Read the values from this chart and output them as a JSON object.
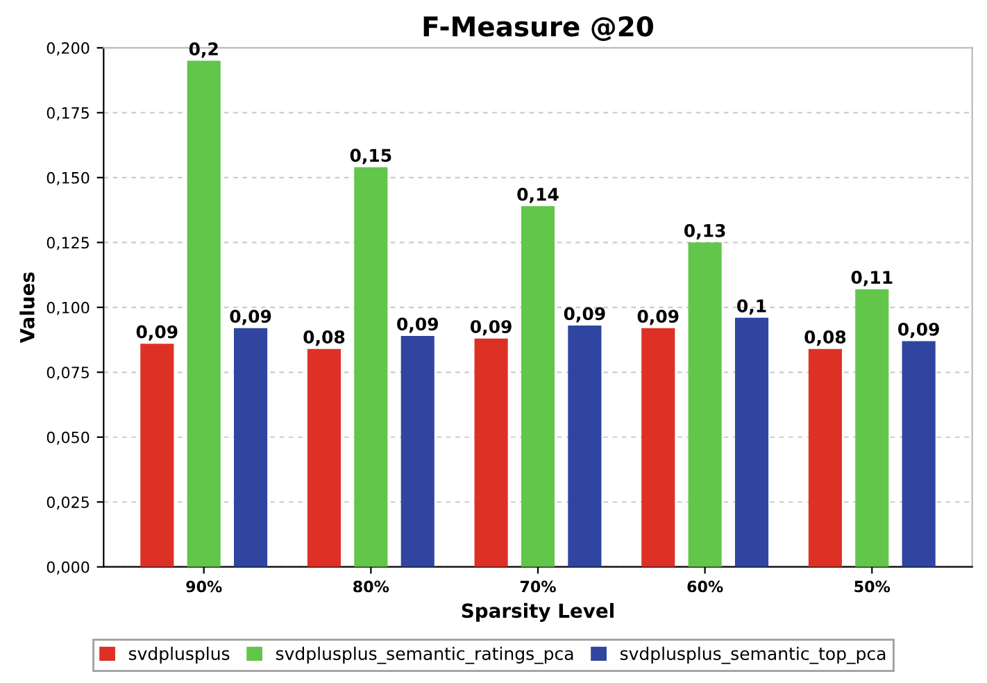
{
  "chart_data": {
    "type": "bar",
    "title": "F-Measure @20",
    "xlabel": "Sparsity Level",
    "ylabel": "Values",
    "categories": [
      "90%",
      "80%",
      "70%",
      "60%",
      "50%"
    ],
    "series": [
      {
        "name": "svdplusplus",
        "color": "#de3125",
        "values": [
          0.086,
          0.084,
          0.088,
          0.092,
          0.084
        ],
        "value_labels": [
          "0,09",
          "0,08",
          "0,09",
          "0,09",
          "0,08"
        ]
      },
      {
        "name": "svdplusplus_semantic_ratings_pca",
        "color": "#62c64b",
        "values": [
          0.195,
          0.154,
          0.139,
          0.125,
          0.107
        ],
        "value_labels": [
          "0,2",
          "0,15",
          "0,14",
          "0,13",
          "0,11"
        ]
      },
      {
        "name": "svdplusplus_semantic_top_pca",
        "color": "#2f45a0",
        "values": [
          0.092,
          0.089,
          0.093,
          0.096,
          0.087
        ],
        "value_labels": [
          "0,09",
          "0,09",
          "0,09",
          "0,1",
          "0,09"
        ]
      }
    ],
    "ylim": [
      0,
      0.2
    ],
    "yticks": [
      {
        "value": 0,
        "label": "0,000"
      },
      {
        "value": 0.025,
        "label": "0,025"
      },
      {
        "value": 0.05,
        "label": "0,050"
      },
      {
        "value": 0.075,
        "label": "0,075"
      },
      {
        "value": 0.1,
        "label": "0,100"
      },
      {
        "value": 0.125,
        "label": "0,125"
      },
      {
        "value": 0.15,
        "label": "0,150"
      },
      {
        "value": 0.175,
        "label": "0,175"
      },
      {
        "value": 0.2,
        "label": "0,200"
      }
    ],
    "grid": "y",
    "legend": "bottom"
  }
}
